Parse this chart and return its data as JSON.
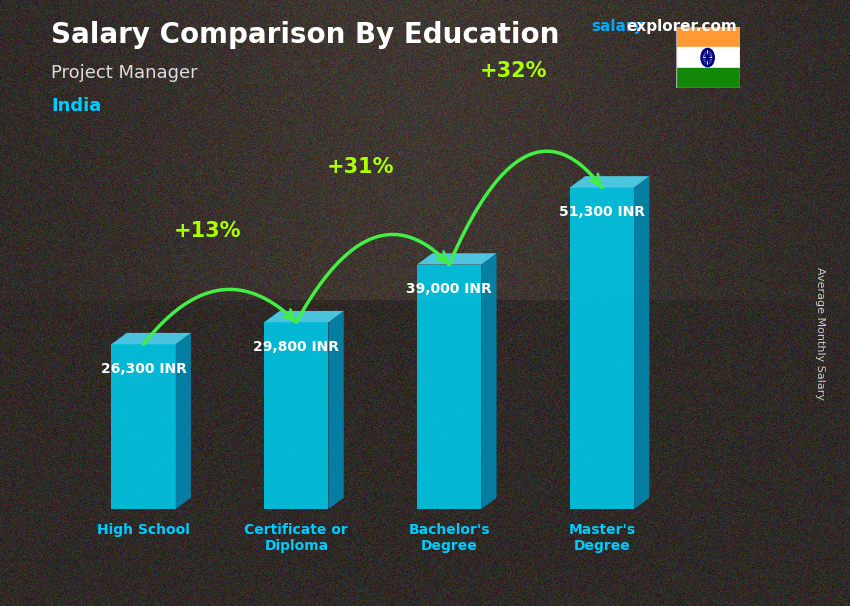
{
  "title": "Salary Comparison By Education",
  "subtitle": "Project Manager",
  "country": "India",
  "ylabel": "Average Monthly Salary",
  "categories": [
    "High School",
    "Certificate or\nDiploma",
    "Bachelor's\nDegree",
    "Master's\nDegree"
  ],
  "values": [
    26300,
    29800,
    39000,
    51300
  ],
  "value_labels": [
    "26,300 INR",
    "29,800 INR",
    "39,000 INR",
    "51,300 INR"
  ],
  "pct_labels": [
    "+13%",
    "+31%",
    "+32%"
  ],
  "bar_color_front": "#00c8e8",
  "bar_color_side": "#0088b0",
  "bar_color_top": "#50e0ff",
  "background_color": "#4a3828",
  "title_color": "#ffffff",
  "subtitle_color": "#dddddd",
  "country_color": "#00ccff",
  "value_label_color": "#ffffff",
  "pct_color": "#aaff00",
  "arrow_color": "#44ee44",
  "site_salary_color": "#00aaff",
  "site_explorer_color": "#ffffff",
  "ylim": [
    0,
    58000
  ],
  "figsize": [
    8.5,
    6.06
  ],
  "dpi": 100
}
